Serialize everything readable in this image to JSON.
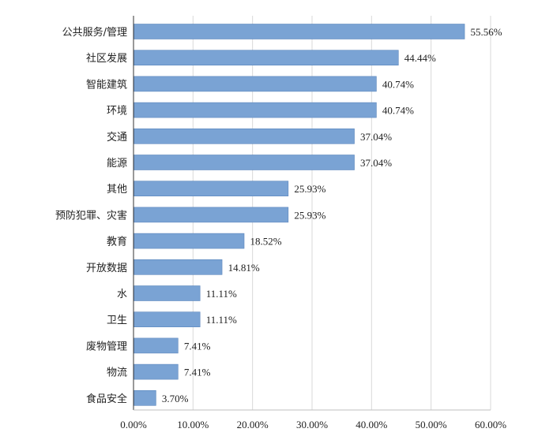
{
  "chart_data": {
    "type": "bar",
    "orientation": "horizontal",
    "title": "",
    "xlabel": "",
    "ylabel": "",
    "xlim": [
      0,
      60
    ],
    "grid": "vertical",
    "legend": "none",
    "bar_color": "#7AA3D4",
    "bar_edge_color": "#5B86BC",
    "grid_color": "#D9D9D9",
    "axis_color": "#333333",
    "categories": [
      "公共服务/管理",
      "社区发展",
      "智能建筑",
      "环境",
      "交通",
      "能源",
      "其他",
      "预防犯罪、灾害",
      "教育",
      "开放数据",
      "水",
      "卫生",
      "废物管理",
      "物流",
      "食品安全"
    ],
    "values": [
      55.56,
      44.44,
      40.74,
      40.74,
      37.04,
      37.04,
      25.93,
      25.93,
      18.52,
      14.81,
      11.11,
      11.11,
      7.41,
      7.41,
      3.7
    ],
    "value_labels": [
      "55.56%",
      "44.44%",
      "40.74%",
      "40.74%",
      "37.04%",
      "37.04%",
      "25.93%",
      "25.93%",
      "18.52%",
      "14.81%",
      "11.11%",
      "11.11%",
      "7.41%",
      "7.41%",
      "3.70%"
    ],
    "x_ticks": [
      0,
      10,
      20,
      30,
      40,
      50,
      60
    ],
    "x_tick_labels": [
      "0.00%",
      "10.00%",
      "20.00%",
      "30.00%",
      "40.00%",
      "50.00%",
      "60.00%"
    ]
  }
}
